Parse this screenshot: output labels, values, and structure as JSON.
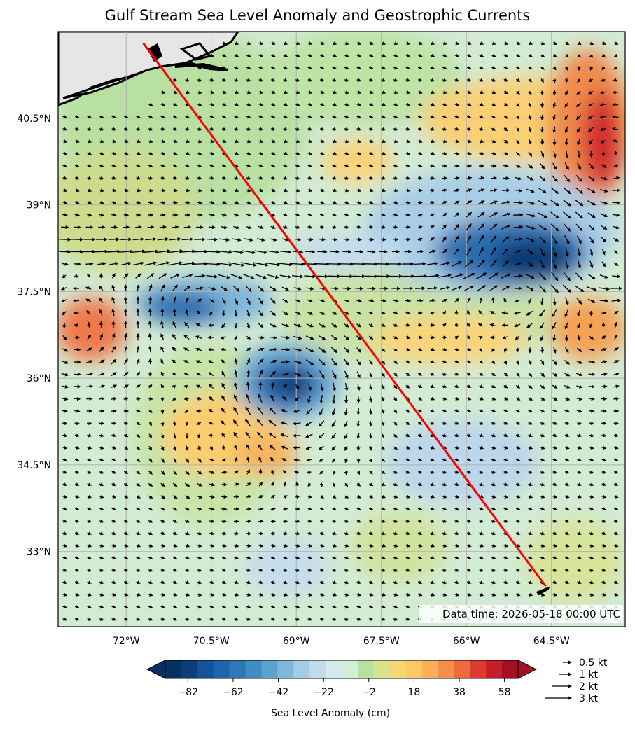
{
  "title": "Gulf Stream Sea Level Anomaly and Geostrophic Currents",
  "timestamp": "Data time: 2026-05-18 00:00 UTC",
  "map": {
    "lon_range": [
      -73.2,
      -63.2
    ],
    "lat_range": [
      31.7,
      42.0
    ],
    "lon_ticks": [
      "72°W",
      "70.5°W",
      "69°W",
      "67.5°W",
      "66°W",
      "64.5°W"
    ],
    "lat_ticks": [
      "40.5°N",
      "39°N",
      "37.5°N",
      "36°N",
      "34.5°N",
      "33°N"
    ],
    "grid": true,
    "transect_line": {
      "start": {
        "lon": -71.7,
        "lat": 41.8
      },
      "end": {
        "lon": -64.6,
        "lat": 32.4
      },
      "color": "#ff0000"
    },
    "features": [
      {
        "name": "cold eddy",
        "lon": -69.1,
        "lat": 35.8,
        "sla": -82
      },
      {
        "name": "cold core",
        "lon": -70.6,
        "lat": 37.3,
        "sla": -62
      },
      {
        "name": "warm core",
        "lon": -72.9,
        "lat": 36.8,
        "sla": 50
      },
      {
        "name": "gulf stream trough",
        "lon": -65.0,
        "lat": 38.1,
        "sla": -90
      },
      {
        "name": "warm ring NE",
        "lon": -63.5,
        "lat": 39.8,
        "sla": 58
      },
      {
        "name": "warm ring E",
        "lon": -63.8,
        "lat": 36.8,
        "sla": 38
      },
      {
        "name": "warm patch S",
        "lon": -70.3,
        "lat": 34.8,
        "sla": 25
      }
    ]
  },
  "colorbar": {
    "label": "Sea Level Anomaly (cm)",
    "ticks": [
      "−82",
      "−62",
      "−42",
      "−22",
      "−2",
      "18",
      "38",
      "58"
    ],
    "range": [
      -92,
      64
    ],
    "colors": [
      "#053061",
      "#0c3e7a",
      "#14529a",
      "#1f65ad",
      "#2e78b8",
      "#3f8ec3",
      "#5ba2cf",
      "#7fb8da",
      "#a4cce4",
      "#c3dcec",
      "#d6e9ef",
      "#d4eed5",
      "#b7e1a1",
      "#d8e38e",
      "#f4d675",
      "#fdc965",
      "#fcae5b",
      "#f68e4b",
      "#ec6a3d",
      "#dd3b2f",
      "#c41f28",
      "#a40f26"
    ]
  },
  "quiver_key": {
    "items": [
      {
        "label": "0.5 kt",
        "speed": 0.5
      },
      {
        "label": "1 kt",
        "speed": 1
      },
      {
        "label": "2 kt",
        "speed": 2
      },
      {
        "label": "3 kt",
        "speed": 3
      }
    ]
  }
}
